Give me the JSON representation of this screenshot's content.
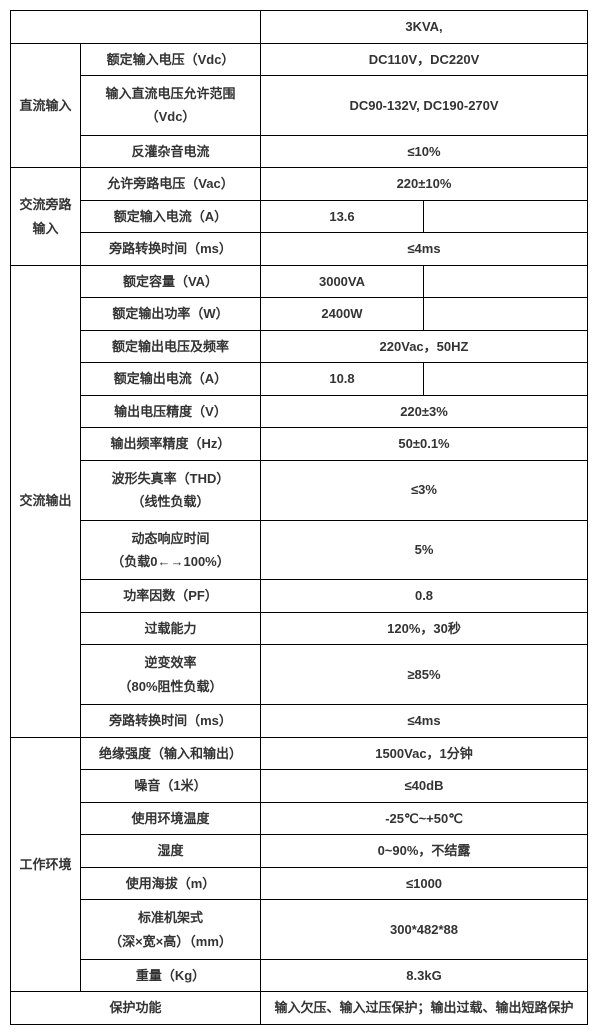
{
  "header": {
    "model": "3KVA,"
  },
  "sections": {
    "dc_input": {
      "label": "直流输入",
      "rows": [
        {
          "param": "额定输入电压（Vdc）",
          "value": "DC110V，DC220V"
        },
        {
          "param_line1": "输入直流电压允许范围",
          "param_line2": "（Vdc）",
          "value": "DC90-132V, DC190-270V"
        },
        {
          "param": "反灌杂音电流",
          "value": "≤10%"
        }
      ]
    },
    "ac_bypass": {
      "label_line1": "交流旁路",
      "label_line2": "输入",
      "rows": [
        {
          "param": "允许旁路电压（Vac）",
          "value": "220±10%"
        },
        {
          "param": "额定输入电流（A）",
          "value1": "13.6",
          "value2": ""
        },
        {
          "param": "旁路转换时间（ms）",
          "value": "≤4ms"
        }
      ]
    },
    "ac_output": {
      "label": "交流输出",
      "rows": [
        {
          "param": "额定容量（VA）",
          "value1": "3000VA",
          "value2": ""
        },
        {
          "param": "额定输出功率（W）",
          "value1": "2400W",
          "value2": ""
        },
        {
          "param": "额定输出电压及频率",
          "value": "220Vac，50HZ"
        },
        {
          "param": "额定输出电流（A）",
          "value1": "10.8",
          "value2": ""
        },
        {
          "param": "输出电压精度（V）",
          "value": "220±3%"
        },
        {
          "param": "输出频率精度（Hz）",
          "value": "50±0.1%"
        },
        {
          "param_line1": "波形失真率（THD）",
          "param_line2": "（线性负载）",
          "value": "≤3%"
        },
        {
          "param_line1": "动态响应时间",
          "param_line2": "（负载0←→100%）",
          "value": "5%"
        },
        {
          "param": "功率因数（PF）",
          "value": "0.8"
        },
        {
          "param": "过载能力",
          "value": "120%，30秒"
        },
        {
          "param_line1": "逆变效率",
          "param_line2": "（80%阻性负载）",
          "value": "≥85%"
        },
        {
          "param": "旁路转换时间（ms）",
          "value": "≤4ms"
        }
      ]
    },
    "work_env": {
      "label": "工作环境",
      "rows": [
        {
          "param": "绝缘强度（输入和输出）",
          "value": "1500Vac，1分钟"
        },
        {
          "param": "噪音（1米）",
          "value": "≤40dB"
        },
        {
          "param": "使用环境温度",
          "value": "-25℃~+50℃"
        },
        {
          "param": "湿度",
          "value": "0~90%，不结露"
        },
        {
          "param": "使用海拔（m）",
          "value": "≤1000"
        },
        {
          "param_line1": "标准机架式",
          "param_line2": "（深×宽×高）（mm）",
          "value": "300*482*88"
        },
        {
          "param": "重量（Kg）",
          "value": "8.3kG"
        }
      ]
    },
    "protection": {
      "label": "保护功能",
      "value": "输入欠压、输入过压保护；输出过载、输出短路保护"
    }
  }
}
